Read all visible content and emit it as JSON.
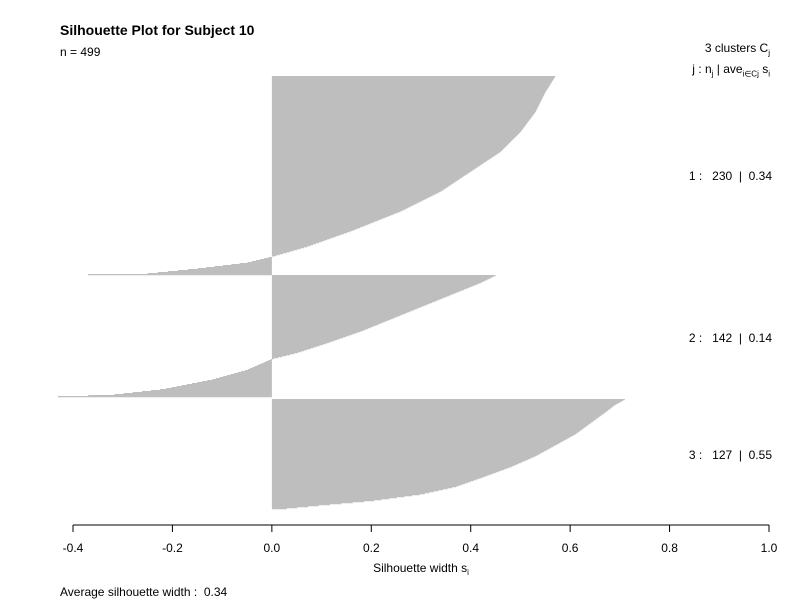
{
  "chart_data": {
    "type": "bar",
    "title": "Silhouette Plot for Subject 10",
    "n_label": "n = 499",
    "xlabel": "Silhouette width s",
    "xlabel_sub": "i",
    "xlim": [
      -0.4,
      1.0
    ],
    "xticks": [
      -0.4,
      -0.2,
      0.0,
      0.2,
      0.4,
      0.6,
      0.8,
      1.0
    ],
    "xtick_labels": [
      "-0.4",
      "-0.2",
      "0.0",
      "0.2",
      "0.4",
      "0.6",
      "0.8",
      "1.0"
    ],
    "legend_header_line1": "3  clusters  C",
    "legend_header_line1_sub": "j",
    "legend_header_line2": "j :  n",
    "legend_header_line2_sub_n": "j",
    "legend_header_line2_mid": " | ave",
    "legend_header_line2_sub_ave": "i∈Cj",
    "legend_header_line2_end": "  s",
    "legend_header_line2_sub_s": "i",
    "bar_color": "#bebebe",
    "clusters": [
      {
        "id": 1,
        "n": 230,
        "avg": 0.34,
        "label": "1 :   230  |  0.34",
        "profile": [
          [
            0,
            0.57
          ],
          [
            0.08,
            0.55
          ],
          [
            0.18,
            0.53
          ],
          [
            0.28,
            0.5
          ],
          [
            0.38,
            0.46
          ],
          [
            0.48,
            0.4
          ],
          [
            0.58,
            0.34
          ],
          [
            0.68,
            0.26
          ],
          [
            0.78,
            0.16
          ],
          [
            0.86,
            0.07
          ],
          [
            0.91,
            0.0
          ],
          [
            0.94,
            -0.05
          ],
          [
            0.97,
            -0.15
          ],
          [
            0.995,
            -0.25
          ],
          [
            1.0,
            -0.37
          ]
        ]
      },
      {
        "id": 2,
        "n": 142,
        "avg": 0.14,
        "label": "2 :   142  |  0.14",
        "profile": [
          [
            0,
            0.45
          ],
          [
            0.06,
            0.42
          ],
          [
            0.16,
            0.36
          ],
          [
            0.26,
            0.3
          ],
          [
            0.36,
            0.24
          ],
          [
            0.46,
            0.18
          ],
          [
            0.56,
            0.11
          ],
          [
            0.64,
            0.05
          ],
          [
            0.69,
            0.0
          ],
          [
            0.78,
            -0.05
          ],
          [
            0.86,
            -0.12
          ],
          [
            0.94,
            -0.22
          ],
          [
            0.985,
            -0.32
          ],
          [
            1.0,
            -0.43
          ]
        ]
      },
      {
        "id": 3,
        "n": 127,
        "avg": 0.55,
        "label": "3 :   127  |  0.55",
        "profile": [
          [
            0,
            0.71
          ],
          [
            0.05,
            0.69
          ],
          [
            0.12,
            0.67
          ],
          [
            0.22,
            0.64
          ],
          [
            0.32,
            0.61
          ],
          [
            0.42,
            0.57
          ],
          [
            0.52,
            0.53
          ],
          [
            0.62,
            0.48
          ],
          [
            0.72,
            0.42
          ],
          [
            0.8,
            0.37
          ],
          [
            0.87,
            0.3
          ],
          [
            0.93,
            0.2
          ],
          [
            0.97,
            0.1
          ],
          [
            1.0,
            0.03
          ]
        ]
      }
    ],
    "average_label": "Average silhouette width :  0.34"
  }
}
